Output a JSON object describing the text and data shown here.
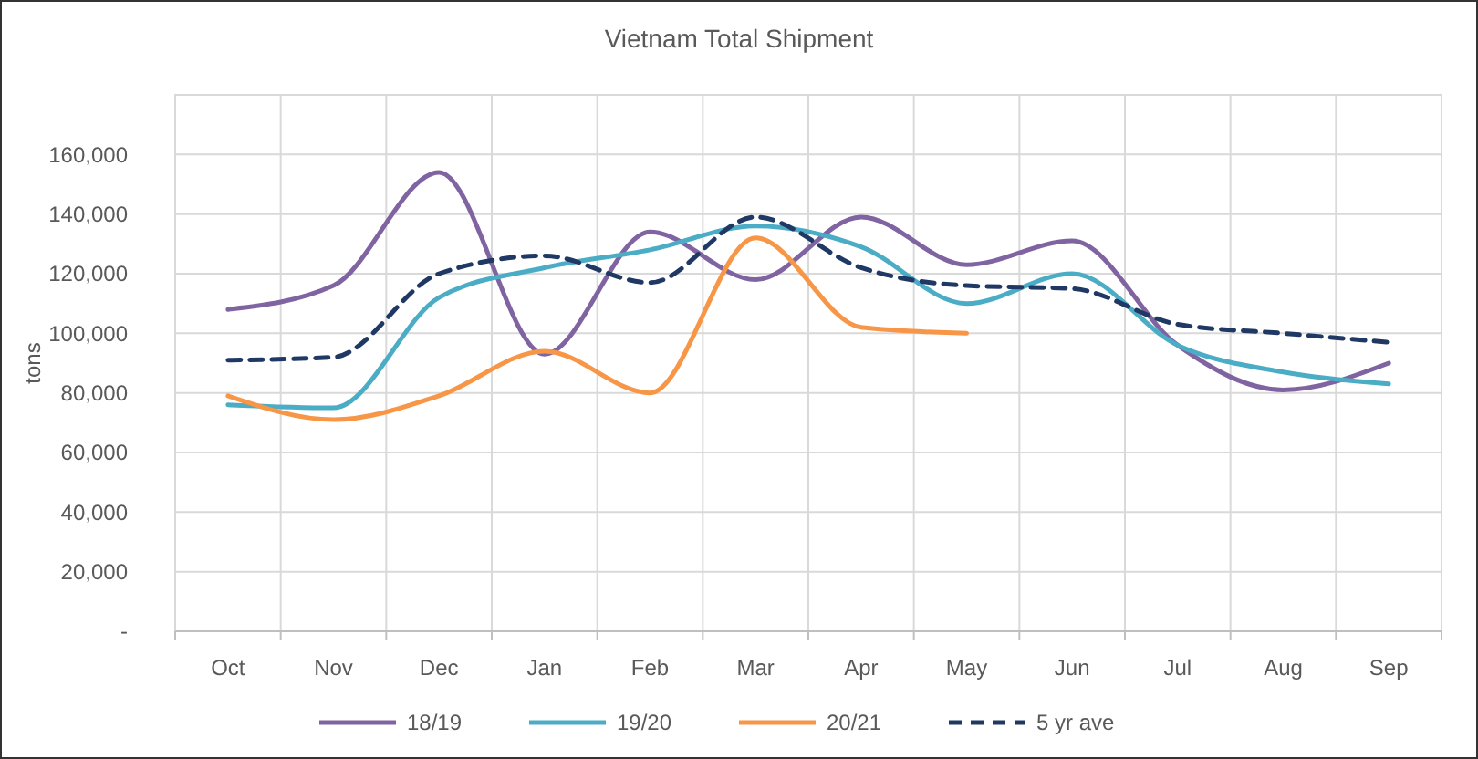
{
  "chart_data": {
    "type": "line",
    "title": "Vietnam Total Shipment",
    "ylabel": "tons",
    "categories": [
      "Oct",
      "Nov",
      "Dec",
      "Jan",
      "Feb",
      "Mar",
      "Apr",
      "May",
      "Jun",
      "Jul",
      "Aug",
      "Sep"
    ],
    "series": [
      {
        "name": "18/19",
        "color": "#8064a2",
        "values": [
          108000,
          116000,
          154000,
          93000,
          134000,
          118000,
          139000,
          123000,
          131000,
          96000,
          81000,
          90000
        ]
      },
      {
        "name": "19/20",
        "color": "#4bacc6",
        "values": [
          76000,
          75000,
          112000,
          122000,
          128000,
          136000,
          129000,
          110000,
          120000,
          96000,
          87000,
          83000
        ]
      },
      {
        "name": "20/21",
        "color": "#f79646",
        "values": [
          79000,
          71000,
          79000,
          94000,
          80000,
          132000,
          102000,
          100000,
          null,
          null,
          null,
          null
        ]
      },
      {
        "name": "5 yr ave",
        "color": "#1f3864",
        "line_style": "dashed",
        "values": [
          91000,
          92000,
          120000,
          126000,
          117000,
          139000,
          122000,
          116000,
          115000,
          103000,
          100000,
          97000
        ]
      }
    ],
    "ylim": [
      0,
      180000
    ],
    "yticks": [
      {
        "value": 0,
        "label": "-"
      },
      {
        "value": 20000,
        "label": "20,000"
      },
      {
        "value": 40000,
        "label": "40,000"
      },
      {
        "value": 60000,
        "label": "60,000"
      },
      {
        "value": 80000,
        "label": "80,000"
      },
      {
        "value": 100000,
        "label": "100,000"
      },
      {
        "value": 120000,
        "label": "120,000"
      },
      {
        "value": 140000,
        "label": "140,000"
      },
      {
        "value": 160000,
        "label": "160,000"
      }
    ],
    "grid": true,
    "legend": "bottom",
    "marker": "none"
  }
}
